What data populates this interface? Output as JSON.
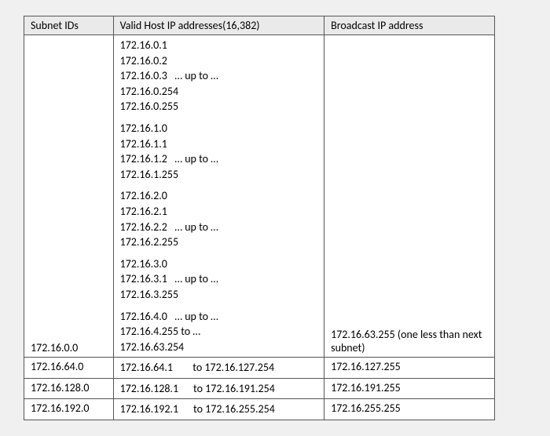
{
  "columns": {
    "subnet": "Subnet IDs",
    "host": "Valid Host IP addresses(16,382)",
    "broadcast": "Broadcast IP address"
  },
  "bigRow": {
    "subnet": "172.16.0.0",
    "broadcast": "172.16.63.255 (one less than next subnet)",
    "groups": [
      [
        "172.16.0.1",
        "172.16.0.2",
        "172.16.0.3   … up to …",
        "172.16.0.254",
        "172.16.0.255"
      ],
      [
        "172.16.1.0",
        "172.16.1.1",
        "172.16.1.2   … up to …",
        "172.16.1.255"
      ],
      [
        "172.16.2.0",
        "172.16.2.1",
        "172.16.2.2   … up to …",
        "172.16.2.255"
      ],
      [
        "172.16.3.0",
        "172.16.3.1   … up to …",
        "172.16.3.255"
      ],
      [
        "172.16.4.0   … up to …",
        "172.16.4.255 to …",
        "172.16.63.254"
      ]
    ]
  },
  "rows": [
    {
      "subnet": "172.16.64.0",
      "host": "172.16.64.1        to 172.16.127.254",
      "broadcast": "172.16.127.255"
    },
    {
      "subnet": "172.16.128.0",
      "host": "172.16.128.1      to 172.16.191.254",
      "broadcast": "172.16.191.255"
    },
    {
      "subnet": "172.16.192.0",
      "host": "172.16.192.1      to 172.16.255.254",
      "broadcast": "172.16.255.255"
    }
  ]
}
